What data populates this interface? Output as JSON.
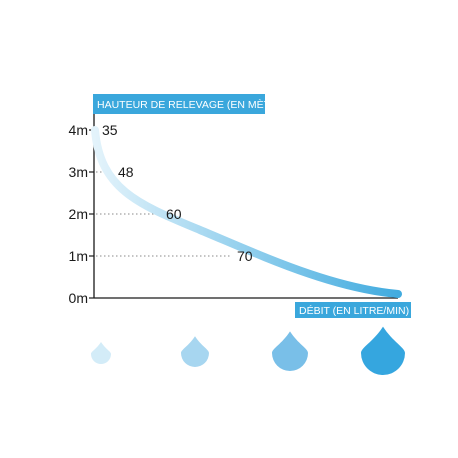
{
  "colors": {
    "banner": "#3aa7dc",
    "axis": "#1a1a1a",
    "curve_start": "#e3f3fb",
    "curve_end": "#41abdf",
    "dotted": "#8a8a8a",
    "drop1": "#d3ecf8",
    "drop2": "#a7d6f0",
    "drop3": "#79bfe8",
    "drop4": "#35a6df"
  },
  "icons": [
    "water-drop-icon",
    "water-drop-icon",
    "water-drop-icon",
    "water-drop-icon"
  ],
  "chart_data": {
    "type": "line",
    "ylabel": "HAUTEUR DE RELEVAGE (EN MÈTRE)",
    "xlabel": "DÉBIT (EN LITRE/MIN)",
    "y_ticks": [
      "0m",
      "1m",
      "2m",
      "3m",
      "4m"
    ],
    "ylim": [
      0,
      4
    ],
    "grid": false,
    "points": [
      {
        "label": "35",
        "y": 4
      },
      {
        "label": "48",
        "y": 3
      },
      {
        "label": "60",
        "y": 2
      },
      {
        "label": "70",
        "y": 1
      }
    ]
  }
}
